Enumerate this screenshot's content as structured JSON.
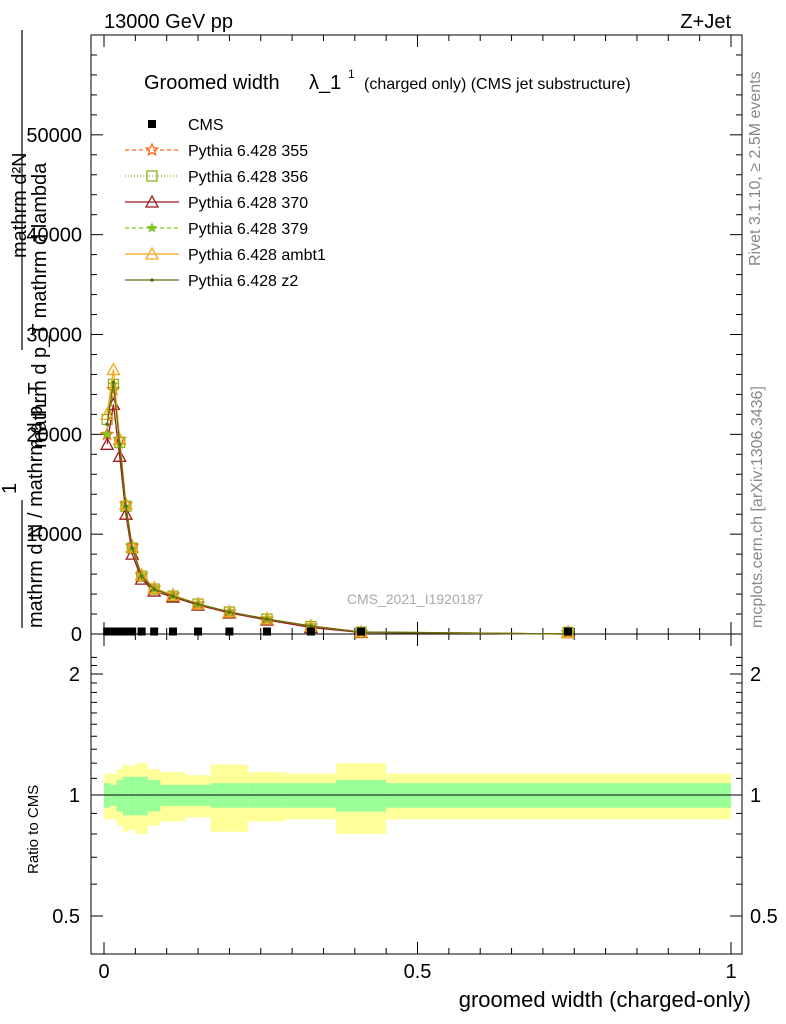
{
  "header": {
    "left": "13000 GeV pp",
    "right": "Z+Jet"
  },
  "side_text": {
    "rivet": "Rivet 3.1.10, ≥ 2.5M events",
    "mcplots": "mcplots.cern.ch [arXiv:1306.3436]"
  },
  "watermark": "CMS_2021_I1920187",
  "title": {
    "main": "Groomed width",
    "lambda": "λ_1",
    "sup": "1",
    "sub": "(charged only) (CMS jet substructure)"
  },
  "ylabel_main": {
    "line1": "mathrm d²N",
    "line2": "mathrm d p_T mathrm d lambda",
    "line3": "1",
    "line4": "mathrm d N / mathrm d p_T"
  },
  "ylabel_ratio": "Ratio to CMS",
  "xlabel": "groomed width (charged-only)",
  "colors": {
    "cms": "#000000",
    "p355": "#ff6b1a",
    "p356": "#8fb31a",
    "p370": "#9b1a1a",
    "p379": "#7dc81e",
    "ambt1": "#f2a81a",
    "z2": "#5f6e14",
    "band_inner": "#99ff99",
    "band_outer": "#ffff99"
  },
  "chart_data": {
    "type": "line",
    "x_ticks": [
      "0",
      "0.5",
      "1"
    ],
    "xlim": [
      0,
      1
    ],
    "main": {
      "ylim": [
        0,
        60000
      ],
      "y_ticks": [
        "0",
        "10000",
        "20000",
        "30000",
        "40000",
        "50000"
      ],
      "y_tick_values": [
        0,
        10000,
        20000,
        30000,
        40000,
        50000
      ]
    },
    "ratio": {
      "ylim": [
        0.4,
        2.3
      ],
      "y_ticks": [
        "0.5",
        "1",
        "2"
      ],
      "y_tick_values": [
        0.5,
        1,
        2
      ]
    },
    "legend": [
      {
        "key": "cms",
        "name": "CMS"
      },
      {
        "key": "p355",
        "name": "Pythia 6.428 355"
      },
      {
        "key": "p356",
        "name": "Pythia 6.428 356"
      },
      {
        "key": "p370",
        "name": "Pythia 6.428 370"
      },
      {
        "key": "p379",
        "name": "Pythia 6.428 379"
      },
      {
        "key": "ambt1",
        "name": "Pythia 6.428 ambt1"
      },
      {
        "key": "z2",
        "name": "Pythia 6.428 z2"
      }
    ],
    "x": [
      0.005,
      0.015,
      0.025,
      0.035,
      0.045,
      0.06,
      0.08,
      0.11,
      0.15,
      0.2,
      0.26,
      0.33,
      0.41,
      0.74
    ],
    "cms_values": [
      250,
      250,
      250,
      250,
      250,
      250,
      250,
      250,
      250,
      250,
      250,
      250,
      250,
      250
    ],
    "series": [
      {
        "key": "p355",
        "name": "Pythia 6.428 355",
        "marker": "star",
        "dash": "4,3",
        "values": [
          20000,
          24500,
          19500,
          13000,
          8800,
          5900,
          4600,
          3900,
          3000,
          2200,
          1500,
          800,
          200,
          0
        ]
      },
      {
        "key": "p356",
        "name": "Pythia 6.428 356",
        "marker": "square",
        "dash": "1,2",
        "values": [
          21500,
          25000,
          19200,
          12800,
          8600,
          5800,
          4500,
          3800,
          3000,
          2200,
          1500,
          750,
          180,
          0
        ]
      },
      {
        "key": "p370",
        "name": "Pythia 6.428 370",
        "marker": "triangle",
        "dash": "",
        "values": [
          19000,
          23000,
          17800,
          12000,
          8000,
          5500,
          4300,
          3700,
          2900,
          2100,
          1400,
          650,
          150,
          0
        ]
      },
      {
        "key": "p379",
        "name": "Pythia 6.428 379",
        "marker": "smallstar",
        "dash": "4,3",
        "values": [
          20000,
          25000,
          19000,
          12700,
          8500,
          5800,
          4500,
          3800,
          3000,
          2200,
          1500,
          800,
          200,
          0
        ]
      },
      {
        "key": "ambt1",
        "name": "Pythia 6.428 ambt1",
        "marker": "triangle",
        "dash": "",
        "values": [
          22000,
          26500,
          19500,
          13000,
          8700,
          5900,
          4600,
          3900,
          3000,
          2200,
          1500,
          800,
          200,
          0
        ]
      },
      {
        "key": "z2",
        "name": "Pythia 6.428 z2",
        "marker": "dot",
        "dash": "",
        "values": [
          21000,
          25200,
          19000,
          12800,
          8600,
          5800,
          4500,
          3800,
          3000,
          2200,
          1500,
          800,
          200,
          0
        ]
      }
    ],
    "ratio_bands": {
      "edges": [
        0.0,
        0.01,
        0.02,
        0.03,
        0.04,
        0.05,
        0.07,
        0.09,
        0.13,
        0.17,
        0.23,
        0.29,
        0.37,
        0.45,
        1.0
      ],
      "inner": [
        0.07,
        0.06,
        0.09,
        0.11,
        0.11,
        0.11,
        0.09,
        0.06,
        0.06,
        0.07,
        0.07,
        0.07,
        0.09,
        0.07
      ],
      "outer": [
        0.13,
        0.13,
        0.16,
        0.19,
        0.18,
        0.2,
        0.16,
        0.14,
        0.12,
        0.19,
        0.14,
        0.13,
        0.2,
        0.13
      ]
    }
  }
}
